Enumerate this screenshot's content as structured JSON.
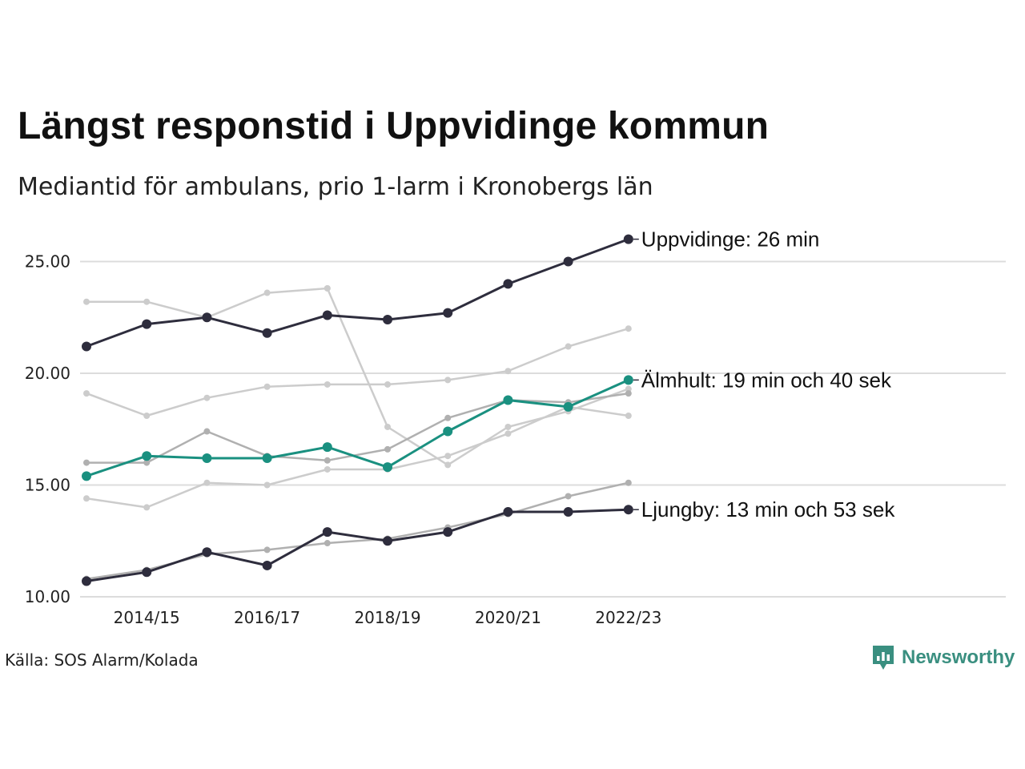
{
  "header": {
    "title": "Längst responstid i Uppvidinge kommun",
    "subtitle": "Mediantid för ambulans, prio 1-larm i Kronobergs län"
  },
  "footer": {
    "source": "Källa: SOS Alarm/Kolada",
    "brand": "Newsworthy"
  },
  "colors": {
    "dark": "#2e2d3d",
    "highlight": "#1a9080",
    "light_gray": "#cccccc",
    "mid_gray": "#b0b0b0",
    "grid": "#dcdcdc",
    "brand": "#3a8f80"
  },
  "chart_data": {
    "type": "line",
    "x": [
      "2013/14",
      "2014/15",
      "2015/16",
      "2016/17",
      "2017/18",
      "2018/19",
      "2019/20",
      "2020/21",
      "2021/22",
      "2022/23"
    ],
    "x_tick_labels": [
      "2014/15",
      "2016/17",
      "2018/19",
      "2020/21",
      "2022/23"
    ],
    "y_ticks": [
      "10.00",
      "15.00",
      "20.00",
      "25.00"
    ],
    "ylim": [
      10,
      26
    ],
    "grid": true,
    "series": [
      {
        "values": [
          23.2,
          23.2,
          22.5,
          23.6,
          23.8,
          null,
          null,
          null,
          null,
          null
        ],
        "style": "light"
      },
      {
        "values": [
          null,
          null,
          null,
          null,
          23.8,
          17.6,
          15.9,
          17.6,
          18.3,
          19.3
        ],
        "style": "light"
      },
      {
        "values": [
          19.1,
          18.1,
          18.9,
          19.4,
          19.5,
          19.5,
          19.7,
          20.1,
          21.2,
          22.0
        ],
        "style": "light"
      },
      {
        "values": [
          14.4,
          14.0,
          15.1,
          15.0,
          15.7,
          15.7,
          16.3,
          17.3,
          18.5,
          18.1
        ],
        "style": "light"
      },
      {
        "values": [
          16.0,
          16.0,
          17.4,
          16.3,
          16.1,
          16.6,
          18.0,
          18.8,
          18.7,
          19.1
        ],
        "style": "mid"
      },
      {
        "values": [
          10.8,
          11.2,
          11.9,
          12.1,
          12.4,
          12.6,
          13.1,
          13.7,
          14.5,
          15.1
        ],
        "style": "mid"
      },
      {
        "name": "Uppvidinge: 26 min",
        "values": [
          21.2,
          22.2,
          22.5,
          21.8,
          22.6,
          22.4,
          22.7,
          24.0,
          25.0,
          26.0
        ],
        "style": "dark"
      },
      {
        "name": "Ljungby: 13 min och 53 sek",
        "values": [
          10.7,
          11.1,
          12.0,
          11.4,
          12.9,
          12.5,
          12.9,
          13.8,
          13.8,
          13.9
        ],
        "style": "dark"
      },
      {
        "name": "Älmhult: 19 min och 40 sek",
        "values": [
          15.4,
          16.3,
          16.2,
          16.2,
          16.7,
          15.8,
          17.4,
          18.8,
          18.5,
          19.7
        ],
        "style": "highlight"
      }
    ]
  }
}
